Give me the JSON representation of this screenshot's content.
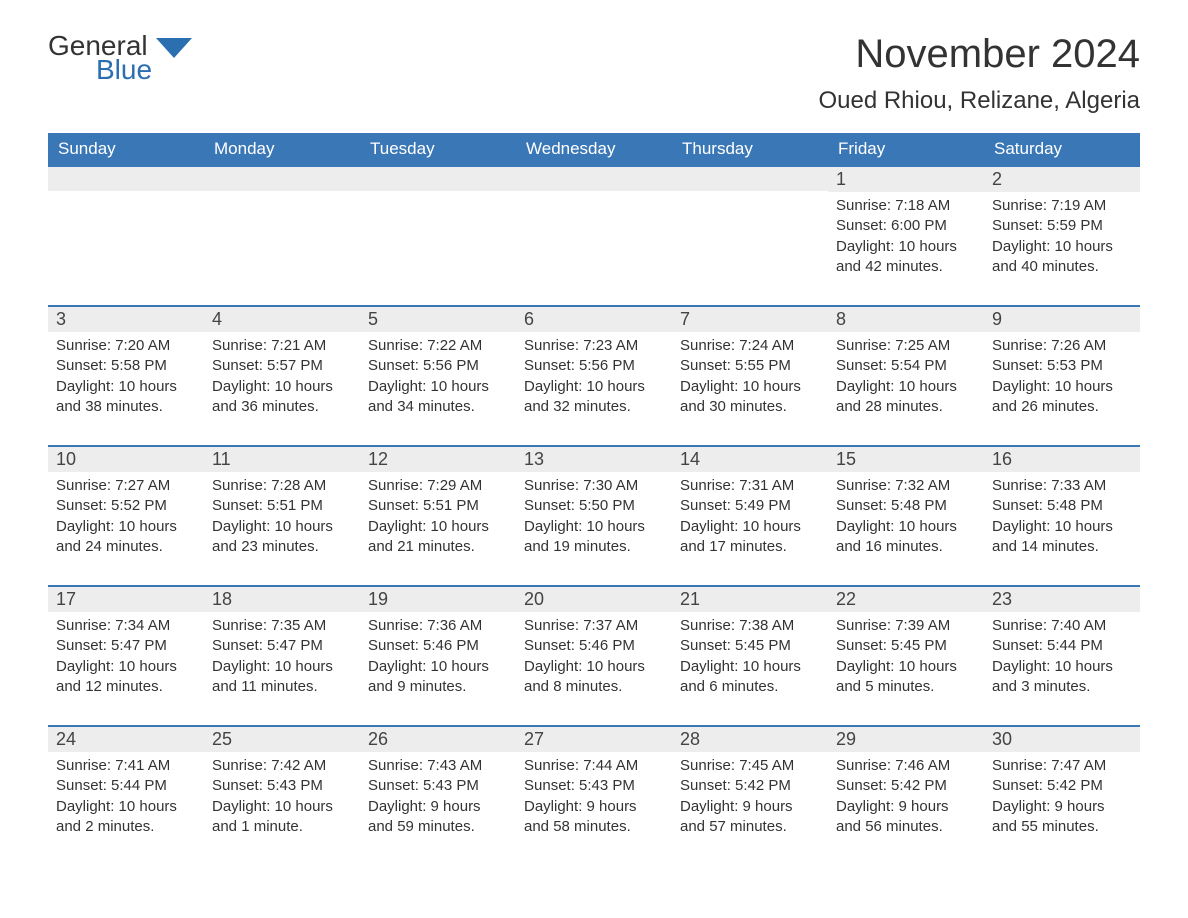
{
  "logo": {
    "text_general": "General",
    "text_blue": "Blue",
    "flag_color": "#2b6fb0"
  },
  "title": {
    "month": "November 2024",
    "location": "Oued Rhiou, Relizane, Algeria"
  },
  "colors": {
    "header_bg": "#3a77b7",
    "header_text": "#ffffff",
    "daynum_bg": "#ededed",
    "week_border": "#3a77b7",
    "body_text": "#333333",
    "brand_blue": "#2b6fb0",
    "background": "#ffffff"
  },
  "typography": {
    "month_title_fontsize": 40,
    "location_fontsize": 24,
    "weekday_fontsize": 17,
    "daynum_fontsize": 18,
    "body_fontsize": 15,
    "logo_fontsize": 28
  },
  "layout": {
    "columns": 7,
    "rows": 5
  },
  "weekdays": [
    "Sunday",
    "Monday",
    "Tuesday",
    "Wednesday",
    "Thursday",
    "Friday",
    "Saturday"
  ],
  "weeks": [
    [
      {
        "empty": true
      },
      {
        "empty": true
      },
      {
        "empty": true
      },
      {
        "empty": true
      },
      {
        "empty": true
      },
      {
        "day": "1",
        "sunrise": "Sunrise: 7:18 AM",
        "sunset": "Sunset: 6:00 PM",
        "daylight1": "Daylight: 10 hours",
        "daylight2": "and 42 minutes."
      },
      {
        "day": "2",
        "sunrise": "Sunrise: 7:19 AM",
        "sunset": "Sunset: 5:59 PM",
        "daylight1": "Daylight: 10 hours",
        "daylight2": "and 40 minutes."
      }
    ],
    [
      {
        "day": "3",
        "sunrise": "Sunrise: 7:20 AM",
        "sunset": "Sunset: 5:58 PM",
        "daylight1": "Daylight: 10 hours",
        "daylight2": "and 38 minutes."
      },
      {
        "day": "4",
        "sunrise": "Sunrise: 7:21 AM",
        "sunset": "Sunset: 5:57 PM",
        "daylight1": "Daylight: 10 hours",
        "daylight2": "and 36 minutes."
      },
      {
        "day": "5",
        "sunrise": "Sunrise: 7:22 AM",
        "sunset": "Sunset: 5:56 PM",
        "daylight1": "Daylight: 10 hours",
        "daylight2": "and 34 minutes."
      },
      {
        "day": "6",
        "sunrise": "Sunrise: 7:23 AM",
        "sunset": "Sunset: 5:56 PM",
        "daylight1": "Daylight: 10 hours",
        "daylight2": "and 32 minutes."
      },
      {
        "day": "7",
        "sunrise": "Sunrise: 7:24 AM",
        "sunset": "Sunset: 5:55 PM",
        "daylight1": "Daylight: 10 hours",
        "daylight2": "and 30 minutes."
      },
      {
        "day": "8",
        "sunrise": "Sunrise: 7:25 AM",
        "sunset": "Sunset: 5:54 PM",
        "daylight1": "Daylight: 10 hours",
        "daylight2": "and 28 minutes."
      },
      {
        "day": "9",
        "sunrise": "Sunrise: 7:26 AM",
        "sunset": "Sunset: 5:53 PM",
        "daylight1": "Daylight: 10 hours",
        "daylight2": "and 26 minutes."
      }
    ],
    [
      {
        "day": "10",
        "sunrise": "Sunrise: 7:27 AM",
        "sunset": "Sunset: 5:52 PM",
        "daylight1": "Daylight: 10 hours",
        "daylight2": "and 24 minutes."
      },
      {
        "day": "11",
        "sunrise": "Sunrise: 7:28 AM",
        "sunset": "Sunset: 5:51 PM",
        "daylight1": "Daylight: 10 hours",
        "daylight2": "and 23 minutes."
      },
      {
        "day": "12",
        "sunrise": "Sunrise: 7:29 AM",
        "sunset": "Sunset: 5:51 PM",
        "daylight1": "Daylight: 10 hours",
        "daylight2": "and 21 minutes."
      },
      {
        "day": "13",
        "sunrise": "Sunrise: 7:30 AM",
        "sunset": "Sunset: 5:50 PM",
        "daylight1": "Daylight: 10 hours",
        "daylight2": "and 19 minutes."
      },
      {
        "day": "14",
        "sunrise": "Sunrise: 7:31 AM",
        "sunset": "Sunset: 5:49 PM",
        "daylight1": "Daylight: 10 hours",
        "daylight2": "and 17 minutes."
      },
      {
        "day": "15",
        "sunrise": "Sunrise: 7:32 AM",
        "sunset": "Sunset: 5:48 PM",
        "daylight1": "Daylight: 10 hours",
        "daylight2": "and 16 minutes."
      },
      {
        "day": "16",
        "sunrise": "Sunrise: 7:33 AM",
        "sunset": "Sunset: 5:48 PM",
        "daylight1": "Daylight: 10 hours",
        "daylight2": "and 14 minutes."
      }
    ],
    [
      {
        "day": "17",
        "sunrise": "Sunrise: 7:34 AM",
        "sunset": "Sunset: 5:47 PM",
        "daylight1": "Daylight: 10 hours",
        "daylight2": "and 12 minutes."
      },
      {
        "day": "18",
        "sunrise": "Sunrise: 7:35 AM",
        "sunset": "Sunset: 5:47 PM",
        "daylight1": "Daylight: 10 hours",
        "daylight2": "and 11 minutes."
      },
      {
        "day": "19",
        "sunrise": "Sunrise: 7:36 AM",
        "sunset": "Sunset: 5:46 PM",
        "daylight1": "Daylight: 10 hours",
        "daylight2": "and 9 minutes."
      },
      {
        "day": "20",
        "sunrise": "Sunrise: 7:37 AM",
        "sunset": "Sunset: 5:46 PM",
        "daylight1": "Daylight: 10 hours",
        "daylight2": "and 8 minutes."
      },
      {
        "day": "21",
        "sunrise": "Sunrise: 7:38 AM",
        "sunset": "Sunset: 5:45 PM",
        "daylight1": "Daylight: 10 hours",
        "daylight2": "and 6 minutes."
      },
      {
        "day": "22",
        "sunrise": "Sunrise: 7:39 AM",
        "sunset": "Sunset: 5:45 PM",
        "daylight1": "Daylight: 10 hours",
        "daylight2": "and 5 minutes."
      },
      {
        "day": "23",
        "sunrise": "Sunrise: 7:40 AM",
        "sunset": "Sunset: 5:44 PM",
        "daylight1": "Daylight: 10 hours",
        "daylight2": "and 3 minutes."
      }
    ],
    [
      {
        "day": "24",
        "sunrise": "Sunrise: 7:41 AM",
        "sunset": "Sunset: 5:44 PM",
        "daylight1": "Daylight: 10 hours",
        "daylight2": "and 2 minutes."
      },
      {
        "day": "25",
        "sunrise": "Sunrise: 7:42 AM",
        "sunset": "Sunset: 5:43 PM",
        "daylight1": "Daylight: 10 hours",
        "daylight2": "and 1 minute."
      },
      {
        "day": "26",
        "sunrise": "Sunrise: 7:43 AM",
        "sunset": "Sunset: 5:43 PM",
        "daylight1": "Daylight: 9 hours",
        "daylight2": "and 59 minutes."
      },
      {
        "day": "27",
        "sunrise": "Sunrise: 7:44 AM",
        "sunset": "Sunset: 5:43 PM",
        "daylight1": "Daylight: 9 hours",
        "daylight2": "and 58 minutes."
      },
      {
        "day": "28",
        "sunrise": "Sunrise: 7:45 AM",
        "sunset": "Sunset: 5:42 PM",
        "daylight1": "Daylight: 9 hours",
        "daylight2": "and 57 minutes."
      },
      {
        "day": "29",
        "sunrise": "Sunrise: 7:46 AM",
        "sunset": "Sunset: 5:42 PM",
        "daylight1": "Daylight: 9 hours",
        "daylight2": "and 56 minutes."
      },
      {
        "day": "30",
        "sunrise": "Sunrise: 7:47 AM",
        "sunset": "Sunset: 5:42 PM",
        "daylight1": "Daylight: 9 hours",
        "daylight2": "and 55 minutes."
      }
    ]
  ]
}
